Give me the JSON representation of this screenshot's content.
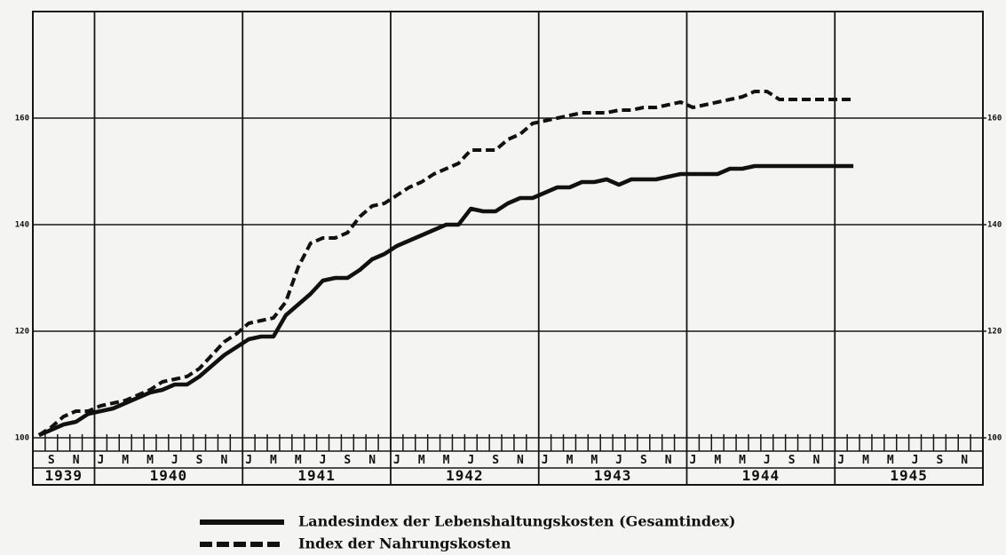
{
  "chart_data": {
    "type": "line",
    "categories": [
      null,
      "S",
      null,
      "N",
      null,
      "J",
      null,
      "M",
      null,
      "M",
      null,
      "J",
      null,
      "S",
      null,
      "N",
      null,
      "J",
      null,
      "M",
      null,
      "M",
      null,
      "J",
      null,
      "S",
      null,
      "N",
      null,
      "J",
      null,
      "M",
      null,
      "M",
      null,
      "J",
      null,
      "S",
      null,
      "N",
      null,
      "J",
      null,
      "M",
      null,
      "M",
      null,
      "J",
      null,
      "S",
      null,
      "N",
      null,
      "J",
      null,
      "M",
      null,
      "M",
      null,
      "J",
      null,
      "S",
      null,
      "N",
      null,
      "J",
      null,
      "M",
      null,
      "M",
      null,
      "J",
      null,
      "S",
      null,
      "N",
      null
    ],
    "year_labels": [
      "1939",
      "1940",
      "1941",
      "1942",
      "1943",
      "1944",
      "1945"
    ],
    "series": [
      {
        "name": "Landesindex der Lebenshaltungskosten (Gesamtindex)",
        "color": "#111111",
        "dash": false,
        "values": [
          100.5,
          101.5,
          102.5,
          103,
          104.5,
          105,
          105.5,
          106.5,
          107.5,
          108.5,
          109,
          110,
          110,
          111.5,
          113.5,
          115.5,
          117,
          118.5,
          119,
          119,
          123,
          125,
          127,
          129.5,
          130,
          130,
          131.5,
          133.5,
          134.5,
          136,
          137,
          138,
          139,
          140,
          140,
          143,
          142.5,
          142.5,
          144,
          145,
          145,
          146,
          147,
          147,
          148,
          148,
          148.5,
          147.5,
          148.5,
          148.5,
          148.5,
          149,
          149.5,
          149.5,
          149.5,
          149.5,
          150.5,
          150.5,
          151,
          151,
          151,
          151,
          151,
          151,
          151,
          151,
          151,
          null,
          null,
          null,
          null,
          null,
          null,
          null,
          null,
          null,
          null
        ]
      },
      {
        "name": "Index der Nahrungskosten",
        "color": "#111111",
        "dash": true,
        "values": [
          100.5,
          102,
          104,
          105,
          105,
          106,
          106.5,
          107,
          108,
          109,
          110.5,
          111,
          111.5,
          113,
          115.5,
          118,
          119.5,
          121.5,
          122,
          122.5,
          125.5,
          132,
          136.5,
          137.5,
          137.5,
          138.5,
          141.5,
          143.5,
          144,
          145.5,
          147,
          148,
          149.5,
          150.5,
          151.5,
          154,
          154,
          154,
          156,
          157,
          159,
          159.5,
          160,
          160.5,
          161,
          161,
          161,
          161.5,
          161.5,
          162,
          162,
          162.5,
          163,
          162,
          162.5,
          163,
          163.5,
          164,
          165,
          165,
          163.5,
          163.5,
          163.5,
          163.5,
          163.5,
          163.5,
          163.5,
          null,
          null,
          null,
          null,
          null,
          null,
          null,
          null,
          null,
          null
        ]
      }
    ],
    "ylim": [
      100,
      180
    ],
    "yticks": [
      100,
      120,
      140,
      160
    ],
    "y2lim": [
      100,
      180
    ],
    "y2ticks": [
      100,
      120,
      140,
      160
    ],
    "grid": true
  }
}
